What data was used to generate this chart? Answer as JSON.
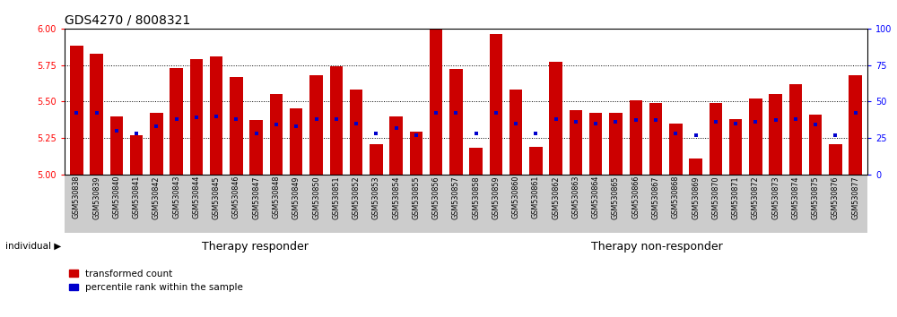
{
  "title": "GDS4270 / 8008321",
  "samples": [
    "GSM530838",
    "GSM530839",
    "GSM530840",
    "GSM530841",
    "GSM530842",
    "GSM530843",
    "GSM530844",
    "GSM530845",
    "GSM530846",
    "GSM530847",
    "GSM530848",
    "GSM530849",
    "GSM530850",
    "GSM530851",
    "GSM530852",
    "GSM530853",
    "GSM530854",
    "GSM530855",
    "GSM530856",
    "GSM530857",
    "GSM530858",
    "GSM530859",
    "GSM530860",
    "GSM530861",
    "GSM530862",
    "GSM530863",
    "GSM530864",
    "GSM530865",
    "GSM530866",
    "GSM530867",
    "GSM530868",
    "GSM530869",
    "GSM530870",
    "GSM530871",
    "GSM530872",
    "GSM530873",
    "GSM530874",
    "GSM530875",
    "GSM530876",
    "GSM530877"
  ],
  "red_values": [
    5.88,
    5.83,
    5.4,
    5.27,
    5.42,
    5.73,
    5.79,
    5.81,
    5.67,
    5.37,
    5.55,
    5.45,
    5.68,
    5.74,
    5.58,
    5.21,
    5.4,
    5.29,
    5.99,
    5.72,
    5.18,
    5.96,
    5.58,
    5.19,
    5.77,
    5.44,
    5.42,
    5.42,
    5.51,
    5.49,
    5.35,
    5.11,
    5.49,
    5.38,
    5.52,
    5.55,
    5.62,
    5.41,
    5.21,
    5.68
  ],
  "blue_pct": [
    42,
    42,
    30,
    28,
    33,
    38,
    39,
    40,
    38,
    28,
    34,
    33,
    38,
    38,
    35,
    28,
    32,
    27,
    42,
    42,
    28,
    42,
    35,
    28,
    38,
    36,
    35,
    36,
    37,
    37,
    28,
    27,
    36,
    35,
    36,
    37,
    38,
    34,
    27,
    42
  ],
  "groups": [
    {
      "label": "Therapy responder",
      "start": 0,
      "end": 19,
      "color": "#90EE90"
    },
    {
      "label": "Therapy non-responder",
      "start": 19,
      "end": 40,
      "color": "#90EE90"
    }
  ],
  "ylim": [
    5.0,
    6.0
  ],
  "y_ticks": [
    5.0,
    5.25,
    5.5,
    5.75,
    6.0
  ],
  "y2_ticks": [
    0,
    25,
    50,
    75,
    100
  ],
  "bar_color": "#CC0000",
  "dot_color": "#0000CC",
  "xtick_bg": "#CCCCCC",
  "title_fontsize": 10,
  "tick_fontsize": 7,
  "group_fontsize": 9,
  "legend_fontsize": 7.5
}
